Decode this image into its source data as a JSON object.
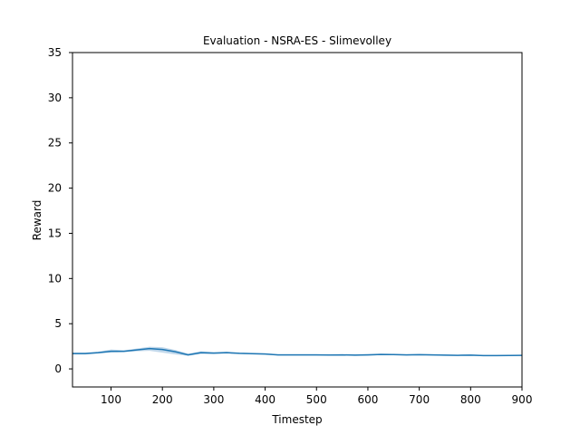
{
  "chart_data": {
    "type": "line",
    "title": "Evaluation - NSRA-ES - Slimevolley",
    "xlabel": "Timestep",
    "ylabel": "Reward",
    "xlim": [
      25,
      900
    ],
    "ylim": [
      -2,
      35
    ],
    "xticks": [
      100,
      200,
      300,
      400,
      500,
      600,
      700,
      800,
      900
    ],
    "yticks": [
      0,
      5,
      10,
      15,
      20,
      25,
      30,
      35
    ],
    "grid": false,
    "series": [
      {
        "color": "#1f77b4",
        "band_color": "#a6c8e2",
        "x": [
          25,
          50,
          75,
          100,
          125,
          150,
          175,
          200,
          225,
          250,
          275,
          300,
          325,
          350,
          375,
          400,
          425,
          450,
          475,
          500,
          525,
          550,
          575,
          600,
          625,
          650,
          675,
          700,
          725,
          750,
          775,
          800,
          825,
          850,
          875,
          900
        ],
        "y": [
          1.7,
          1.7,
          1.8,
          1.95,
          1.95,
          2.1,
          2.25,
          2.15,
          1.9,
          1.55,
          1.8,
          1.75,
          1.8,
          1.72,
          1.68,
          1.65,
          1.55,
          1.55,
          1.55,
          1.55,
          1.53,
          1.55,
          1.52,
          1.55,
          1.6,
          1.58,
          1.55,
          1.57,
          1.55,
          1.52,
          1.5,
          1.52,
          1.47,
          1.47,
          1.48,
          1.5
        ],
        "lower": [
          1.6,
          1.6,
          1.7,
          1.8,
          1.85,
          1.95,
          2.0,
          1.8,
          1.6,
          1.45,
          1.65,
          1.65,
          1.7,
          1.65,
          1.6,
          1.58,
          1.5,
          1.5,
          1.5,
          1.5,
          1.48,
          1.5,
          1.45,
          1.48,
          1.52,
          1.52,
          1.5,
          1.5,
          1.48,
          1.45,
          1.45,
          1.45,
          1.42,
          1.42,
          1.42,
          1.45
        ],
        "upper": [
          1.8,
          1.8,
          1.9,
          2.15,
          2.05,
          2.25,
          2.45,
          2.4,
          2.1,
          1.7,
          1.95,
          1.85,
          1.9,
          1.8,
          1.75,
          1.72,
          1.62,
          1.62,
          1.62,
          1.62,
          1.6,
          1.62,
          1.62,
          1.65,
          1.68,
          1.65,
          1.62,
          1.65,
          1.62,
          1.6,
          1.56,
          1.6,
          1.53,
          1.52,
          1.54,
          1.56
        ]
      }
    ]
  }
}
